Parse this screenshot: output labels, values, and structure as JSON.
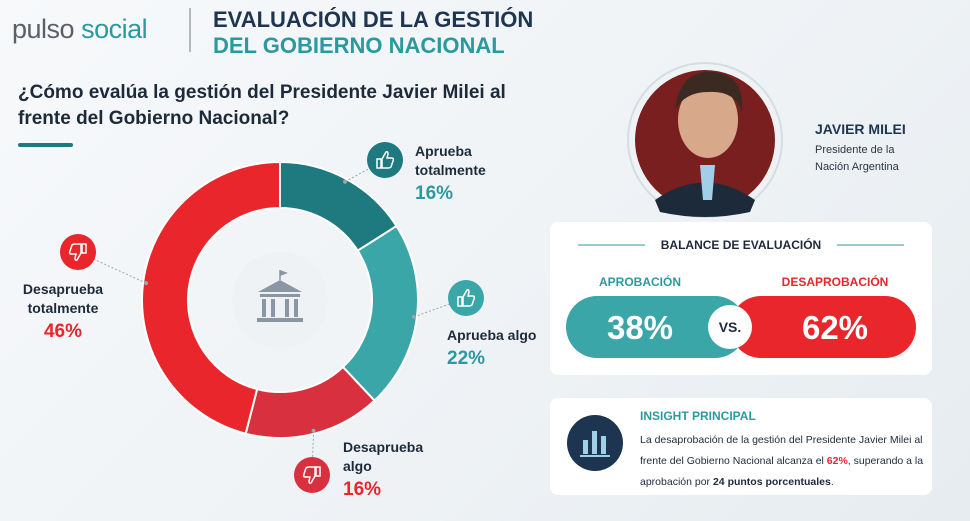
{
  "header": {
    "logo_a": "pulso",
    "logo_b": "social",
    "title_line1": "EVALUACIÓN DE LA GESTIÓN",
    "title_line2": "DEL GOBIERNO NACIONAL"
  },
  "question": "¿Cómo evalúa la gestión del Presidente Javier Milei al frente del Gobierno Nacional?",
  "chart_data": {
    "type": "donut",
    "categories": [
      "Aprueba totalmente",
      "Aprueba algo",
      "Desaprueba algo",
      "Desaprueba totalmente"
    ],
    "values": [
      16,
      22,
      16,
      46
    ],
    "value_labels": [
      "16%",
      "22%",
      "16%",
      "46%"
    ],
    "colors": [
      "#1f7a80",
      "#3aa6a8",
      "#d9303f",
      "#e8262b"
    ]
  },
  "profile": {
    "name": "JAVIER MILEI",
    "role": "Presidente de la Nación Argentina"
  },
  "balance": {
    "title": "BALANCE DE EVALUACIÓN",
    "approval_label": "APROBACIÓN",
    "approval_value": "38%",
    "separator": "VS.",
    "disapproval_label": "DESAPROBACIÓN",
    "disapproval_value": "62%"
  },
  "insight": {
    "title": "INSIGHT PRINCIPAL",
    "text": [
      "La desaprobación de la gestión del Presidente Javier Milei al frente del Gobierno Nacional alcanza el ",
      "62%",
      ", superando a la aprobación por ",
      "24 puntos porcentuales",
      "."
    ]
  }
}
